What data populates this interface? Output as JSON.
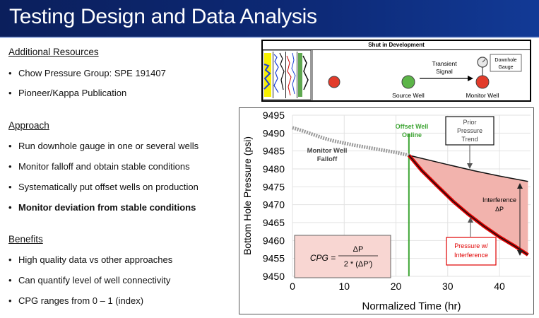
{
  "slide": {
    "title": "Testing Design and Data Analysis"
  },
  "sections": [
    {
      "heading": "Additional Resources",
      "bullets": [
        "Chow Pressure Group: SPE 191407",
        "Pioneer/Kappa Publication"
      ]
    },
    {
      "heading": "Approach",
      "bullets": [
        "Run downhole gauge in one or several wells",
        "Monitor falloff and obtain stable conditions",
        "Systematically put offset wells on production",
        "Monitor deviation from stable conditions"
      ]
    },
    {
      "heading": "Benefits",
      "bullets": [
        "High quality data vs other approaches",
        "Can quantify level of well connectivity",
        "CPG ranges from 0 – 1 (index)"
      ]
    }
  ],
  "bullet_char": "•",
  "diagram": {
    "header": "Shut in Development",
    "signal_label_1": "Transient",
    "signal_label_2": "Signal",
    "source_label": "Source Well",
    "monitor_label": "Monitor Well",
    "gauge_label_1": "Downhole",
    "gauge_label_2": "Gauge"
  },
  "annotations": {
    "offset_1": "Offset Well",
    "offset_2": "Online",
    "falloff_1": "Monitor Well",
    "falloff_2": "Falloff",
    "prior_1": "Prior",
    "prior_2": "Pressure",
    "prior_3": "Trend",
    "interf_1": "Interference",
    "interf_2": "ΔP",
    "pw_1": "Pressure w/",
    "pw_2": "Interference",
    "formula_lhs": "CPG =",
    "formula_num": "ΔP",
    "formula_den": "2 * (ΔP′)"
  },
  "colors": {
    "title_bg": "#0d2a78",
    "falloff": "#9a9a9a",
    "interference": "#e00000",
    "fill": "#f2b3ad",
    "offset_line": "#3fa535",
    "offset_text": "#3fa535"
  },
  "chart_data": {
    "type": "line",
    "xlabel": "Normalized Time (hr)",
    "ylabel": "Bottom Hole Pressure (psi)",
    "xlim": [
      0,
      46
    ],
    "ylim": [
      9450,
      9495
    ],
    "xticks": [
      "0",
      "10",
      "20",
      "30",
      "40"
    ],
    "xtick_values": [
      0,
      10,
      20,
      30,
      40
    ],
    "yticks": [
      "9495",
      "9490",
      "9485",
      "9480",
      "9475",
      "9470",
      "9465",
      "9460",
      "9455",
      "9450"
    ],
    "ytick_values": [
      9495,
      9490,
      9485,
      9480,
      9475,
      9470,
      9465,
      9460,
      9455,
      9450
    ],
    "offset_well_online_x": 22.5,
    "series": [
      {
        "id": "falloff",
        "x": [
          0,
          2,
          4,
          6,
          8,
          10,
          12,
          14,
          16,
          18,
          20,
          22.5
        ],
        "y": [
          9491.5,
          9490.6,
          9489.6,
          9488.6,
          9487.8,
          9487.2,
          9486.6,
          9486.1,
          9485.6,
          9485.1,
          9484.6,
          9483.8
        ]
      },
      {
        "id": "prior_trend",
        "x": [
          22.5,
          30,
          35,
          40,
          45.5
        ],
        "y": [
          9483.8,
          9481.2,
          9479.5,
          9478.0,
          9476.5
        ]
      },
      {
        "id": "pressure_with_interference",
        "x": [
          22.5,
          25,
          28,
          31,
          34,
          37,
          40,
          43,
          45.5
        ],
        "y": [
          9483.8,
          9479.5,
          9475.2,
          9471.0,
          9467.3,
          9464.0,
          9461.0,
          9458.4,
          9456.0
        ]
      }
    ]
  }
}
